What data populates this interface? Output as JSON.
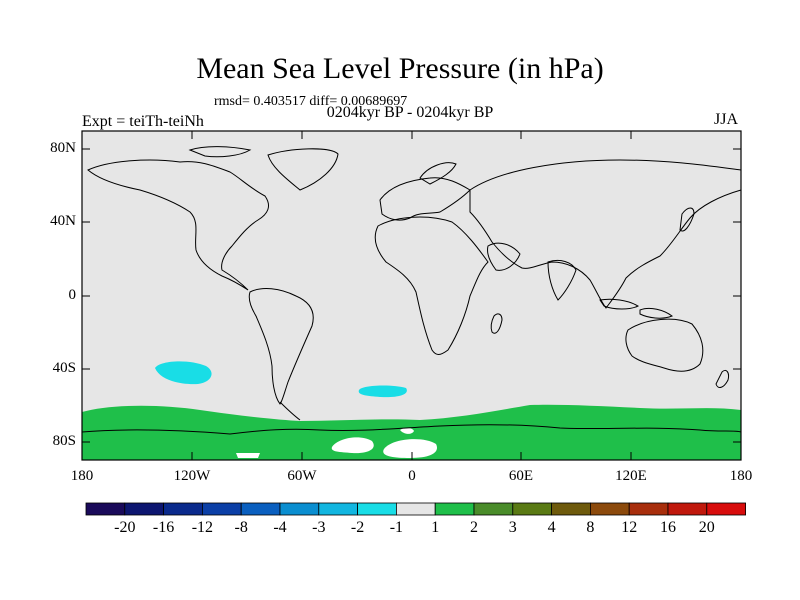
{
  "title": "Mean Sea Level Pressure (in hPa)",
  "stats": "rmsd= 0.403517 diff= 0.00689697",
  "subtitle": "0204kyr BP - 0204kyr BP",
  "expt": "Expt = teiTh-teiNh",
  "season": "JJA",
  "lat_labels": [
    "80N",
    "40N",
    "0",
    "40S",
    "80S"
  ],
  "lon_labels": [
    "180",
    "120W",
    "60W",
    "0",
    "60E",
    "120E",
    "180"
  ],
  "colorbar": {
    "labels": [
      "-20",
      "-16",
      "-12",
      "-8",
      "-4",
      "-3",
      "-2",
      "-1",
      "1",
      "2",
      "3",
      "4",
      "8",
      "12",
      "16",
      "20"
    ],
    "colors": [
      "#1a0a5a",
      "#0d1670",
      "#0a2a8c",
      "#0b3fa6",
      "#0a5fbf",
      "#0a8ed0",
      "#12b6e0",
      "#19dde6",
      "#e6e6e6",
      "#1fbf4a",
      "#4a8c2a",
      "#5a7a14",
      "#6e5a0c",
      "#8c4a0c",
      "#a82e0c",
      "#c0180c",
      "#d80c0c"
    ]
  },
  "map": {
    "background": "#e6e6e6",
    "regions": [
      {
        "name": "southern-ocean-green-band",
        "color": "#1fbf4a"
      },
      {
        "name": "south-pacific-cyan-patch",
        "color": "#19dde6"
      },
      {
        "name": "south-atlantic-cyan-patch",
        "color": "#19dde6"
      }
    ]
  }
}
